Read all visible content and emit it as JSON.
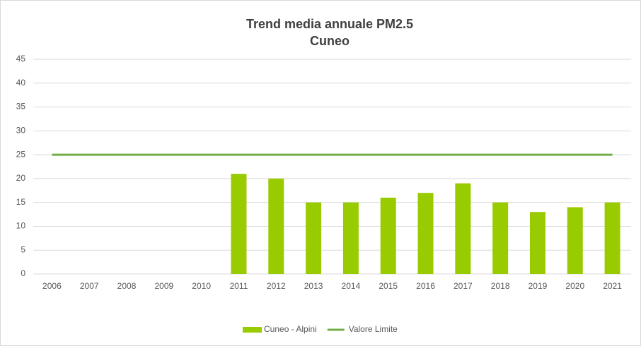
{
  "chart_data": {
    "type": "bar",
    "title": "Trend media annuale PM2.5",
    "subtitle": "Cuneo",
    "categories": [
      "2006",
      "2007",
      "2008",
      "2009",
      "2010",
      "2011",
      "2012",
      "2013",
      "2014",
      "2015",
      "2016",
      "2017",
      "2018",
      "2019",
      "2020",
      "2021"
    ],
    "series": [
      {
        "name": "Cuneo - Alpini",
        "type": "bar",
        "color": "#99cc00",
        "values": [
          null,
          null,
          null,
          null,
          null,
          21,
          20,
          15,
          15,
          16,
          17,
          19,
          15,
          13,
          14,
          15
        ]
      },
      {
        "name": "Valore Limite",
        "type": "line",
        "color": "#70ad47",
        "values": [
          25,
          25,
          25,
          25,
          25,
          25,
          25,
          25,
          25,
          25,
          25,
          25,
          25,
          25,
          25,
          25
        ]
      }
    ],
    "ylim": [
      0,
      45
    ],
    "yticks": [
      0,
      5,
      10,
      15,
      20,
      25,
      30,
      35,
      40,
      45
    ],
    "grid": true,
    "legend": "bottom"
  }
}
